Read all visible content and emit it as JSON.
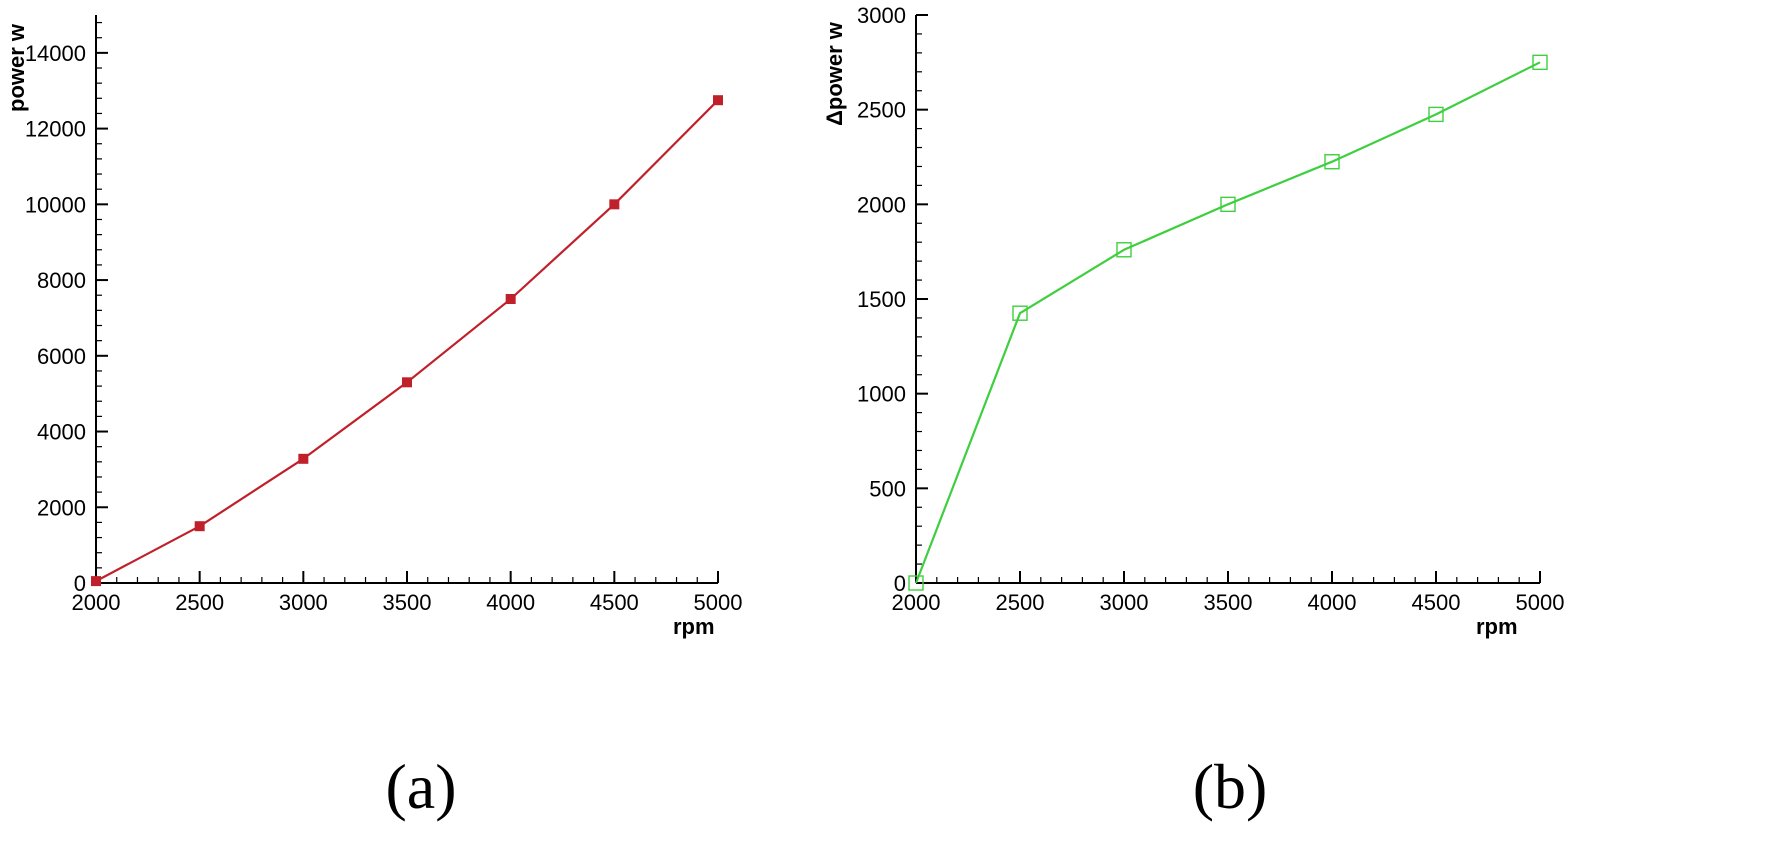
{
  "chart_data": [
    {
      "type": "line",
      "panel_label": "(a)",
      "xlabel": "rpm",
      "ylabel": "power w",
      "xlim": [
        2000,
        5000
      ],
      "ylim": [
        0,
        15000
      ],
      "xticks": [
        2000,
        2500,
        3000,
        3500,
        4000,
        4500,
        5000
      ],
      "yticks": [
        0,
        2000,
        4000,
        6000,
        8000,
        10000,
        12000,
        14000
      ],
      "x": [
        2000,
        2500,
        3000,
        3500,
        4000,
        4500,
        5000
      ],
      "series": [
        {
          "values": [
            50,
            1500,
            3280,
            5300,
            7500,
            10000,
            12750
          ],
          "color": "#c0202a",
          "marker": "filled-square"
        }
      ],
      "grid": false
    },
    {
      "type": "line",
      "panel_label": "(b)",
      "xlabel": "rpm",
      "ylabel": "Δpower w",
      "xlim": [
        2000,
        5000
      ],
      "ylim": [
        0,
        3000
      ],
      "xticks": [
        2000,
        2500,
        3000,
        3500,
        4000,
        4500,
        5000
      ],
      "yticks": [
        0,
        500,
        1000,
        1500,
        2000,
        2500,
        3000
      ],
      "x": [
        2000,
        2500,
        3000,
        3500,
        4000,
        4500,
        5000
      ],
      "series": [
        {
          "values": [
            0,
            1425,
            1760,
            2000,
            2225,
            2475,
            2750
          ],
          "color": "#3ecf3e",
          "marker": "open-square"
        }
      ],
      "grid": false
    }
  ]
}
